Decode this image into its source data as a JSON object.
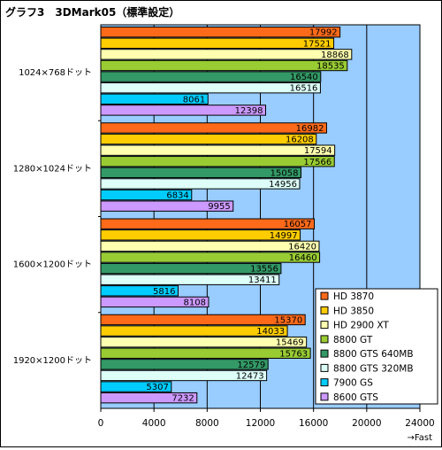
{
  "chart_data": {
    "type": "bar",
    "orientation": "horizontal",
    "title": "グラフ3　3DMark05（標準設定）",
    "xlabel": "→Fast",
    "xlim": [
      0,
      24000
    ],
    "xticks": [
      "0",
      "4000",
      "8000",
      "12000",
      "16000",
      "20000",
      "24000"
    ],
    "categories": [
      "1024×768ドット",
      "1280×1024ドット",
      "1600×1200ドット",
      "1920×1200ドット"
    ],
    "series": [
      {
        "name": "HD 3870",
        "color": "#ff6a1a",
        "values": [
          17992,
          16982,
          16057,
          15370
        ]
      },
      {
        "name": "HD 3850",
        "color": "#ffcc00",
        "values": [
          17521,
          16208,
          14997,
          14033
        ]
      },
      {
        "name": "HD 2900 XT",
        "color": "#ffffb0",
        "values": [
          18868,
          17594,
          16420,
          15469
        ]
      },
      {
        "name": "8800 GT",
        "color": "#99cc33",
        "values": [
          18535,
          17566,
          16460,
          15763
        ]
      },
      {
        "name": "8800 GTS 640MB",
        "color": "#339966",
        "values": [
          16540,
          15058,
          13556,
          12579
        ]
      },
      {
        "name": "8800 GTS 320MB",
        "color": "#ddfff8",
        "values": [
          16516,
          14956,
          13411,
          12473
        ]
      },
      {
        "name": "7900 GS",
        "color": "#00ccff",
        "values": [
          8061,
          6834,
          5816,
          5307
        ]
      },
      {
        "name": "8600 GTS",
        "color": "#cc99ff",
        "values": [
          12398,
          9955,
          8108,
          7232
        ]
      }
    ],
    "grid": true,
    "plot_background": "#99ccff",
    "legend_position": "bottom-right"
  }
}
